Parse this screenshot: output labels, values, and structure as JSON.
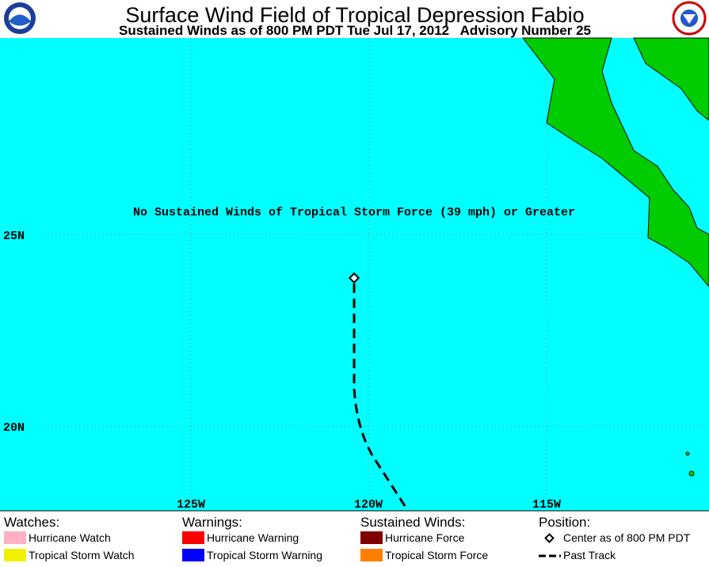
{
  "header": {
    "title": "Surface Wind Field of Tropical Depression Fabio",
    "subtitle": "Sustained Winds as of 800 PM PDT Tue Jul 17, 2012   Advisory Number 25"
  },
  "map": {
    "message": "No Sustained Winds of Tropical Storm Force (39 mph) or Greater",
    "lat_labels": [
      "25N",
      "20N"
    ],
    "lon_labels": [
      "125W",
      "120W",
      "115W"
    ]
  },
  "legend": {
    "columns": [
      {
        "heading": "Watches:",
        "items": [
          "Hurricane Watch",
          "Tropical Storm Watch"
        ]
      },
      {
        "heading": "Warnings:",
        "items": [
          "Hurricane Warning",
          "Tropical Storm Warning"
        ]
      },
      {
        "heading": "Sustained Winds:",
        "items": [
          "Hurricane Force",
          "Tropical Storm Force"
        ]
      },
      {
        "heading": "Position:",
        "items": [
          "Center as of 800 PM PDT",
          "Past Track"
        ]
      }
    ]
  }
}
